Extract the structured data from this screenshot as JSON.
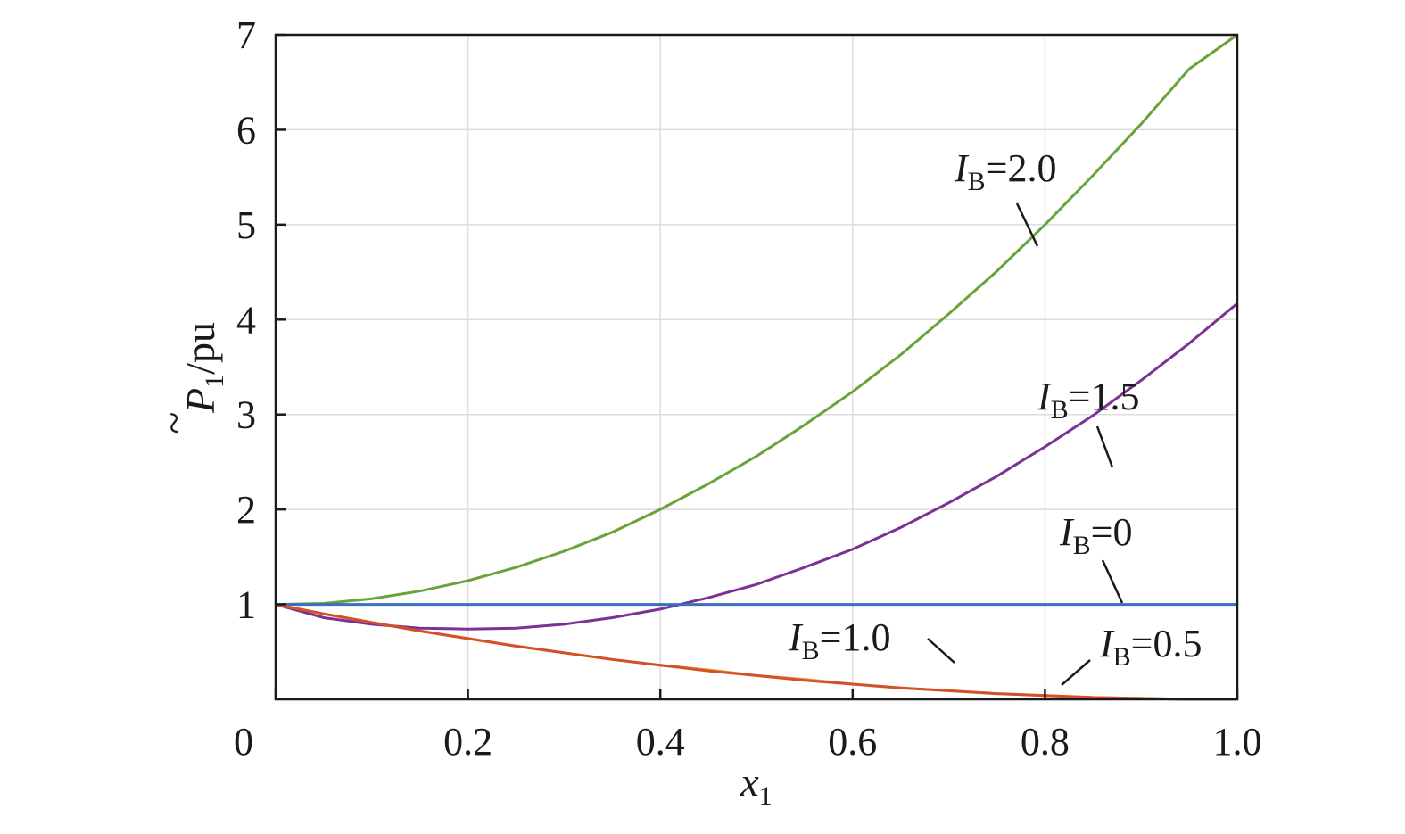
{
  "chart_data": {
    "type": "line",
    "xlabel": "x",
    "xlabel_sub": "1",
    "ylabel": "P",
    "ylabel_sub": "1",
    "ylabel_unit": "/pu",
    "ylabel_accent": "~",
    "xlim": [
      0,
      1.0
    ],
    "ylim": [
      0,
      7
    ],
    "xticks": [
      0,
      0.2,
      0.4,
      0.6,
      0.8,
      1.0
    ],
    "xtick_labels": [
      "0",
      "0.2",
      "0.4",
      "0.6",
      "0.8",
      "1.0"
    ],
    "yticks": [
      1,
      2,
      3,
      4,
      5,
      6,
      7
    ],
    "ytick_labels": [
      "1",
      "2",
      "3",
      "4",
      "5",
      "6",
      "7"
    ],
    "grid": true,
    "x": [
      0,
      0.05,
      0.1,
      0.15,
      0.2,
      0.25,
      0.3,
      0.35,
      0.4,
      0.45,
      0.5,
      0.55,
      0.6,
      0.65,
      0.7,
      0.75,
      0.8,
      0.85,
      0.9,
      0.95,
      1.0
    ],
    "series": [
      {
        "label": "2.0",
        "color": "#6aa338",
        "values": [
          1.0,
          1.01,
          1.06,
          1.14,
          1.25,
          1.39,
          1.56,
          1.76,
          2.0,
          2.27,
          2.56,
          2.89,
          3.24,
          3.63,
          4.06,
          4.51,
          5.0,
          5.52,
          6.06,
          6.64,
          7.0
        ],
        "annotation": {
          "x": 0.8,
          "y": 4.8
        }
      },
      {
        "label": "1.5",
        "color": "#7b3294",
        "values": [
          1.0,
          0.86,
          0.79,
          0.75,
          0.74,
          0.75,
          0.79,
          0.86,
          0.95,
          1.07,
          1.21,
          1.39,
          1.58,
          1.81,
          2.07,
          2.35,
          2.66,
          2.99,
          3.36,
          3.75,
          4.17
        ],
        "annotation": {
          "x": 0.87,
          "y": 2.45
        }
      },
      {
        "label": "0",
        "color": "#3a6fbf",
        "values": [
          1.0,
          1.0,
          1.0,
          1.0,
          1.0,
          1.0,
          1.0,
          1.0,
          1.0,
          1.0,
          1.0,
          1.0,
          1.0,
          1.0,
          1.0,
          1.0,
          1.0,
          1.0,
          1.0,
          1.0,
          1.0
        ],
        "annotation": {
          "x": 0.88,
          "y": 1.0
        }
      },
      {
        "label": "1.0",
        "color": "#e0a43a",
        "values": [
          1.0,
          0.9,
          0.81,
          0.72,
          0.64,
          0.56,
          0.49,
          0.42,
          0.36,
          0.31,
          0.25,
          0.21,
          0.16,
          0.12,
          0.09,
          0.06,
          0.04,
          0.02,
          0.01,
          0.0,
          0.0
        ],
        "annotation": {
          "x": 0.71,
          "y": 0.37
        }
      },
      {
        "label": "0.5",
        "color": "#d4502a",
        "values": [
          1.0,
          0.9,
          0.81,
          0.72,
          0.64,
          0.56,
          0.49,
          0.42,
          0.36,
          0.3,
          0.25,
          0.2,
          0.16,
          0.12,
          0.09,
          0.06,
          0.04,
          0.02,
          0.01,
          0.0,
          0.0
        ],
        "annotation": {
          "x": 0.81,
          "y": 0.15
        }
      }
    ],
    "series_prefix": "I",
    "series_prefix_sub": "B"
  }
}
